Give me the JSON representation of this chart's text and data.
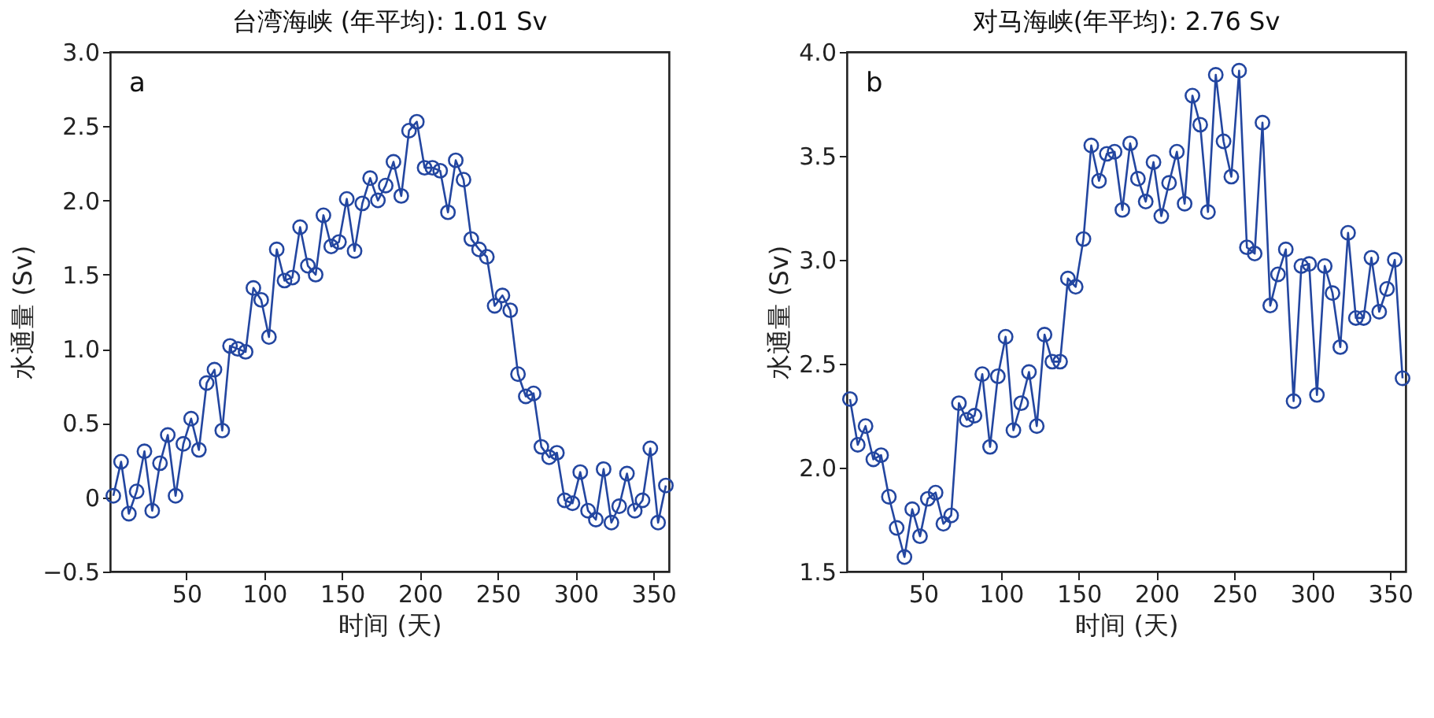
{
  "chart_data": [
    {
      "type": "line",
      "title": "台湾海峡 (年平均): 1.01 Sv",
      "xlabel": "时间 (天)",
      "ylabel": "水通量 (Sv)",
      "annotations": [
        "a"
      ],
      "x": [
        3,
        8,
        13,
        18,
        23,
        28,
        33,
        38,
        43,
        48,
        53,
        58,
        63,
        68,
        73,
        78,
        83,
        88,
        93,
        98,
        103,
        108,
        113,
        118,
        123,
        128,
        133,
        138,
        143,
        148,
        153,
        158,
        163,
        168,
        173,
        178,
        183,
        188,
        193,
        198,
        203,
        208,
        213,
        218,
        223,
        228,
        233,
        238,
        243,
        248,
        253,
        258,
        263,
        268,
        273,
        278,
        283,
        288,
        293,
        298,
        303,
        308,
        313,
        318,
        323,
        328,
        333,
        338,
        343,
        348,
        353,
        358
      ],
      "series": [
        {
          "color": "#2346a0",
          "values": [
            0.01,
            0.24,
            -0.11,
            0.04,
            0.31,
            -0.09,
            0.23,
            0.42,
            0.01,
            0.36,
            0.53,
            0.32,
            0.77,
            0.86,
            0.45,
            1.02,
            1.0,
            0.98,
            1.41,
            1.33,
            1.08,
            1.67,
            1.46,
            1.48,
            1.82,
            1.56,
            1.5,
            1.9,
            1.69,
            1.72,
            2.01,
            1.66,
            1.98,
            2.15,
            2.0,
            2.1,
            2.26,
            2.03,
            2.47,
            2.53,
            2.22,
            2.22,
            2.2,
            1.92,
            2.27,
            2.14,
            1.74,
            1.67,
            1.62,
            1.29,
            1.36,
            1.26,
            0.83,
            0.68,
            0.7,
            0.34,
            0.27,
            0.3,
            -0.02,
            -0.04,
            0.17,
            -0.09,
            -0.15,
            0.19,
            -0.17,
            -0.06,
            0.16,
            -0.09,
            -0.02,
            0.33,
            -0.17,
            0.08
          ]
        }
      ],
      "xlim": [
        1,
        360
      ],
      "xticks": [
        50,
        100,
        150,
        200,
        250,
        300,
        350
      ],
      "ylim": [
        -0.5,
        3.0
      ],
      "yticks": [
        -0.5,
        0,
        0.5,
        {
          "value": 1,
          "label": "1.0"
        },
        1.5,
        {
          "value": 2,
          "label": "2.0"
        },
        2.5,
        {
          "value": 3,
          "label": "3.0"
        }
      ],
      "grid": false,
      "marker": "circle",
      "line_style": "solid"
    },
    {
      "type": "line",
      "title": "对马海峡(年平均): 2.76 Sv",
      "xlabel": "时间 (天)",
      "ylabel": "水通量 (Sv)",
      "annotations": [
        "b"
      ],
      "x": [
        3,
        8,
        13,
        18,
        23,
        28,
        33,
        38,
        43,
        48,
        53,
        58,
        63,
        68,
        73,
        78,
        83,
        88,
        93,
        98,
        103,
        108,
        113,
        118,
        123,
        128,
        133,
        138,
        143,
        148,
        153,
        158,
        163,
        168,
        173,
        178,
        183,
        188,
        193,
        198,
        203,
        208,
        213,
        218,
        223,
        228,
        233,
        238,
        243,
        248,
        253,
        258,
        263,
        268,
        273,
        278,
        283,
        288,
        293,
        298,
        303,
        308,
        313,
        318,
        323,
        328,
        333,
        338,
        343,
        348,
        353,
        358
      ],
      "series": [
        {
          "color": "#2346a0",
          "values": [
            2.33,
            2.11,
            2.2,
            2.04,
            2.06,
            1.86,
            1.71,
            1.57,
            1.8,
            1.67,
            1.85,
            1.88,
            1.73,
            1.77,
            2.31,
            2.23,
            2.25,
            2.45,
            2.1,
            2.44,
            2.63,
            2.18,
            2.31,
            2.46,
            2.2,
            2.64,
            2.51,
            2.51,
            2.91,
            2.87,
            3.1,
            3.55,
            3.38,
            3.51,
            3.52,
            3.24,
            3.56,
            3.39,
            3.28,
            3.47,
            3.21,
            3.37,
            3.52,
            3.27,
            3.79,
            3.65,
            3.23,
            3.89,
            3.57,
            3.4,
            3.91,
            3.06,
            3.03,
            3.66,
            2.78,
            2.93,
            3.05,
            2.32,
            2.97,
            2.98,
            2.35,
            2.97,
            2.84,
            2.58,
            3.13,
            2.72,
            2.72,
            3.01,
            2.75,
            2.86,
            3.0,
            2.43
          ]
        }
      ],
      "xlim": [
        1,
        360
      ],
      "xticks": [
        50,
        100,
        150,
        200,
        250,
        300,
        350
      ],
      "ylim": [
        1.5,
        4.0
      ],
      "yticks": [
        1.5,
        {
          "value": 2,
          "label": "2.0"
        },
        2.5,
        {
          "value": 3,
          "label": "3.0"
        },
        3.5,
        {
          "value": 4,
          "label": "4.0"
        }
      ],
      "grid": false,
      "marker": "circle",
      "line_style": "solid"
    }
  ]
}
